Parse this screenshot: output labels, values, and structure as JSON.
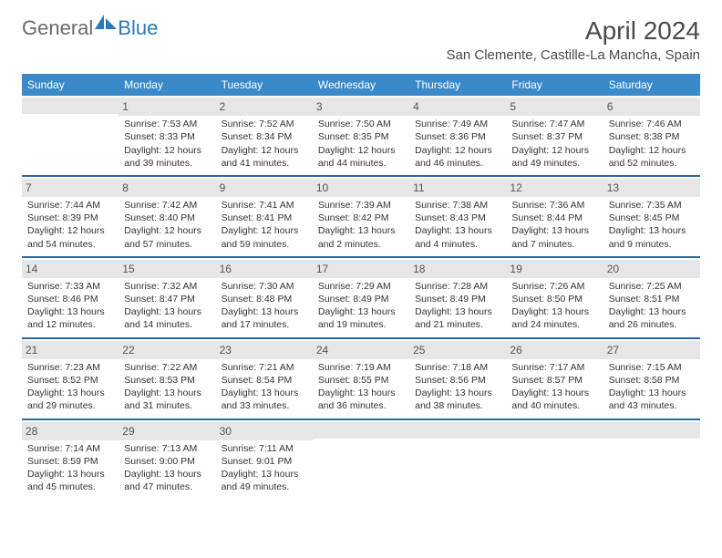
{
  "brand": {
    "general": "General",
    "blue": "Blue"
  },
  "title": "April 2024",
  "location": "San Clemente, Castille-La Mancha, Spain",
  "colors": {
    "header_bg": "#3a8ac9",
    "header_text": "#ffffff",
    "row_divider": "#2a6aa0",
    "daynum_bg": "#e6e6e6",
    "text": "#333333",
    "logo_gray": "#6a6a6a",
    "logo_blue": "#2a7ab8"
  },
  "weekdays": [
    "Sunday",
    "Monday",
    "Tuesday",
    "Wednesday",
    "Thursday",
    "Friday",
    "Saturday"
  ],
  "weeks": [
    [
      null,
      {
        "n": "1",
        "sr": "7:53 AM",
        "ss": "8:33 PM",
        "dl": "12 hours and 39 minutes."
      },
      {
        "n": "2",
        "sr": "7:52 AM",
        "ss": "8:34 PM",
        "dl": "12 hours and 41 minutes."
      },
      {
        "n": "3",
        "sr": "7:50 AM",
        "ss": "8:35 PM",
        "dl": "12 hours and 44 minutes."
      },
      {
        "n": "4",
        "sr": "7:49 AM",
        "ss": "8:36 PM",
        "dl": "12 hours and 46 minutes."
      },
      {
        "n": "5",
        "sr": "7:47 AM",
        "ss": "8:37 PM",
        "dl": "12 hours and 49 minutes."
      },
      {
        "n": "6",
        "sr": "7:46 AM",
        "ss": "8:38 PM",
        "dl": "12 hours and 52 minutes."
      }
    ],
    [
      {
        "n": "7",
        "sr": "7:44 AM",
        "ss": "8:39 PM",
        "dl": "12 hours and 54 minutes."
      },
      {
        "n": "8",
        "sr": "7:42 AM",
        "ss": "8:40 PM",
        "dl": "12 hours and 57 minutes."
      },
      {
        "n": "9",
        "sr": "7:41 AM",
        "ss": "8:41 PM",
        "dl": "12 hours and 59 minutes."
      },
      {
        "n": "10",
        "sr": "7:39 AM",
        "ss": "8:42 PM",
        "dl": "13 hours and 2 minutes."
      },
      {
        "n": "11",
        "sr": "7:38 AM",
        "ss": "8:43 PM",
        "dl": "13 hours and 4 minutes."
      },
      {
        "n": "12",
        "sr": "7:36 AM",
        "ss": "8:44 PM",
        "dl": "13 hours and 7 minutes."
      },
      {
        "n": "13",
        "sr": "7:35 AM",
        "ss": "8:45 PM",
        "dl": "13 hours and 9 minutes."
      }
    ],
    [
      {
        "n": "14",
        "sr": "7:33 AM",
        "ss": "8:46 PM",
        "dl": "13 hours and 12 minutes."
      },
      {
        "n": "15",
        "sr": "7:32 AM",
        "ss": "8:47 PM",
        "dl": "13 hours and 14 minutes."
      },
      {
        "n": "16",
        "sr": "7:30 AM",
        "ss": "8:48 PM",
        "dl": "13 hours and 17 minutes."
      },
      {
        "n": "17",
        "sr": "7:29 AM",
        "ss": "8:49 PM",
        "dl": "13 hours and 19 minutes."
      },
      {
        "n": "18",
        "sr": "7:28 AM",
        "ss": "8:49 PM",
        "dl": "13 hours and 21 minutes."
      },
      {
        "n": "19",
        "sr": "7:26 AM",
        "ss": "8:50 PM",
        "dl": "13 hours and 24 minutes."
      },
      {
        "n": "20",
        "sr": "7:25 AM",
        "ss": "8:51 PM",
        "dl": "13 hours and 26 minutes."
      }
    ],
    [
      {
        "n": "21",
        "sr": "7:23 AM",
        "ss": "8:52 PM",
        "dl": "13 hours and 29 minutes."
      },
      {
        "n": "22",
        "sr": "7:22 AM",
        "ss": "8:53 PM",
        "dl": "13 hours and 31 minutes."
      },
      {
        "n": "23",
        "sr": "7:21 AM",
        "ss": "8:54 PM",
        "dl": "13 hours and 33 minutes."
      },
      {
        "n": "24",
        "sr": "7:19 AM",
        "ss": "8:55 PM",
        "dl": "13 hours and 36 minutes."
      },
      {
        "n": "25",
        "sr": "7:18 AM",
        "ss": "8:56 PM",
        "dl": "13 hours and 38 minutes."
      },
      {
        "n": "26",
        "sr": "7:17 AM",
        "ss": "8:57 PM",
        "dl": "13 hours and 40 minutes."
      },
      {
        "n": "27",
        "sr": "7:15 AM",
        "ss": "8:58 PM",
        "dl": "13 hours and 43 minutes."
      }
    ],
    [
      {
        "n": "28",
        "sr": "7:14 AM",
        "ss": "8:59 PM",
        "dl": "13 hours and 45 minutes."
      },
      {
        "n": "29",
        "sr": "7:13 AM",
        "ss": "9:00 PM",
        "dl": "13 hours and 47 minutes."
      },
      {
        "n": "30",
        "sr": "7:11 AM",
        "ss": "9:01 PM",
        "dl": "13 hours and 49 minutes."
      },
      null,
      null,
      null,
      null
    ]
  ]
}
